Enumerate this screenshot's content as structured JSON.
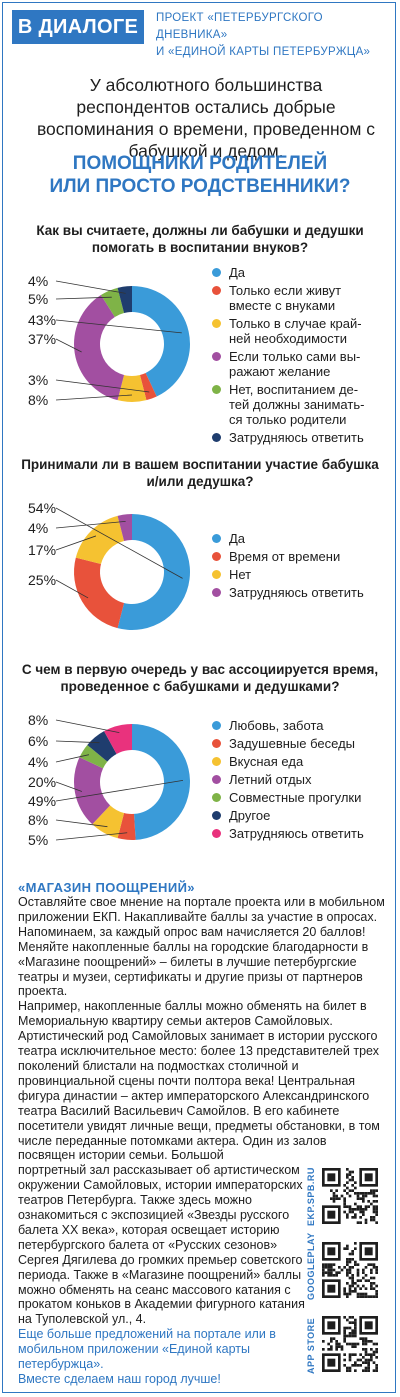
{
  "header": {
    "badge": "В ДИАЛОГЕ",
    "project_line1": "ПРОЕКТ «ПЕТЕРБУРГСКОГО ДНЕВНИКА»",
    "project_line2": "И «ЕДИНОЙ КАРТЫ ПЕТЕРБУРЖЦА»"
  },
  "intro": "У абсолютного большинства респондентов остались добрые воспоминания о времени, проведенном с бабушкой и дедом.",
  "headline_line1": "ПОМОЩНИКИ РОДИТЕЛЕЙ",
  "headline_line2": "ИЛИ ПРОСТО РОДСТВЕННИКИ?",
  "colors": {
    "accent": "#2f77c2",
    "blue": "#3a9bd9",
    "red": "#e8523b",
    "yellow": "#f5c231",
    "purple": "#a24fa1",
    "green": "#7fb347",
    "navy": "#1f3d6e",
    "pink": "#e9327d"
  },
  "chart_data": [
    {
      "type": "pie",
      "title": "Как вы считаете, должны ли бабушки и дедушки помогать в воспитании внуков?",
      "categories": [
        "Да",
        "Только если живут вместе с внуками",
        "Только в случае крайней необходимости",
        "Если только сами выражают желание",
        "Нет, воспитанием детей должны заниматься только родители",
        "Затрудняюсь ответить"
      ],
      "legend_lines": [
        "Да",
        "Только если живут\nвместе с внуками",
        "Только в случае край-\nней необходимости",
        "Если только сами вы-\nражают желание",
        "Нет, воспитанием де-\nтей должны занимать-\nся только родители",
        "Затрудняюсь ответить"
      ],
      "values": [
        43,
        3,
        8,
        37,
        5,
        4
      ],
      "labels_left": [
        "4%",
        "5%",
        "43%",
        "37%",
        "3%",
        "8%"
      ],
      "colors": [
        "#3a9bd9",
        "#e8523b",
        "#f5c231",
        "#a24fa1",
        "#7fb347",
        "#1f3d6e"
      ]
    },
    {
      "type": "pie",
      "title": "Принимали ли в вашем воспитании участие бабушка и/или дедушка?",
      "categories": [
        "Да",
        "Время от времени",
        "Нет",
        "Затрудняюсь ответить"
      ],
      "legend_lines": [
        "Да",
        "Время от времени",
        "Нет",
        "Затрудняюсь ответить"
      ],
      "values": [
        54,
        25,
        17,
        4
      ],
      "labels_left": [
        "54%",
        "4%",
        "17%",
        "25%"
      ],
      "colors": [
        "#3a9bd9",
        "#e8523b",
        "#f5c231",
        "#a24fa1"
      ]
    },
    {
      "type": "pie",
      "title": "С чем в первую очередь у вас ассоциируется время, проведенное с бабушками и дедушками?",
      "categories": [
        "Любовь, забота",
        "Задушевные беседы",
        "Вкусная еда",
        "Летний отдых",
        "Совместные прогулки",
        "Другое",
        "Затрудняюсь ответить"
      ],
      "legend_lines": [
        "Любовь, забота",
        "Задушевные беседы",
        "Вкусная еда",
        "Летний отдых",
        "Совместные прогулки",
        "Другое",
        "Затрудняюсь ответить"
      ],
      "values": [
        49,
        5,
        8,
        20,
        4,
        6,
        8
      ],
      "labels_left": [
        "8%",
        "6%",
        "4%",
        "20%",
        "49%",
        "8%",
        "5%"
      ],
      "colors": [
        "#3a9bd9",
        "#e8523b",
        "#f5c231",
        "#a24fa1",
        "#7fb347",
        "#1f3d6e",
        "#e9327d"
      ]
    }
  ],
  "shop": {
    "title": "«МАГАЗИН ПООЩРЕНИЙ»",
    "text_wide": "Оставляйте свое мнение на портале проекта или в мобильном приложении ЕКП. Накапливайте баллы за участие в опросах. Напоминаем, за каждый опрос вам начисляется 20 баллов!\nМеняйте накопленные баллы на городские благодарности в «Магазине поощрений» – билеты в лучшие петербургские театры и музеи, сертификаты и другие призы от партнеров проекта.\nНапример, накопленные баллы можно обменять на билет в Мемориальную квартиру семьи актеров Самойловых. Артистический род Самойловых занимает в истории русского театра исключительное место: более 13 представителей трех поколений блистали на подмостках столичной и провинциальной сцены почти полтора века! Центральная фигура династии – актер императорского Александринского театра Василий Васильевич Самойлов. В его кабинете посетители увидят личные вещи, предметы обстановки, в том числе переданные потомками актера. Один из залов посвящен истории семьи. Большой",
    "text_narrow": "портретный зал рассказывает об артистическом окружении Самойловых, истории императорских театров Петербурга. Также здесь можно ознакомиться с экспозицией «Звезды русского балета XX века», которая освещает историю петербургского балета от «Русских сезонов» Сергея Дягилева до громких премьер советского периода. Также в «Магазине поощрений» баллы можно обменять на сеанс массового катания с прокатом коньков в Академии фигурного катания на Туполевской ул., 4."
  },
  "footer": "Еще больше предложений на портале или в мобильном приложении «Единой карты петербуржца».\nВместе сделаем наш город лучше!",
  "qr_codes": [
    {
      "label": "EKP.SPB.RU",
      "icon": "qr-code-icon"
    },
    {
      "label": "GOOGLEPLAY",
      "icon": "qr-code-icon"
    },
    {
      "label": "APP STORE",
      "icon": "qr-code-icon"
    }
  ]
}
